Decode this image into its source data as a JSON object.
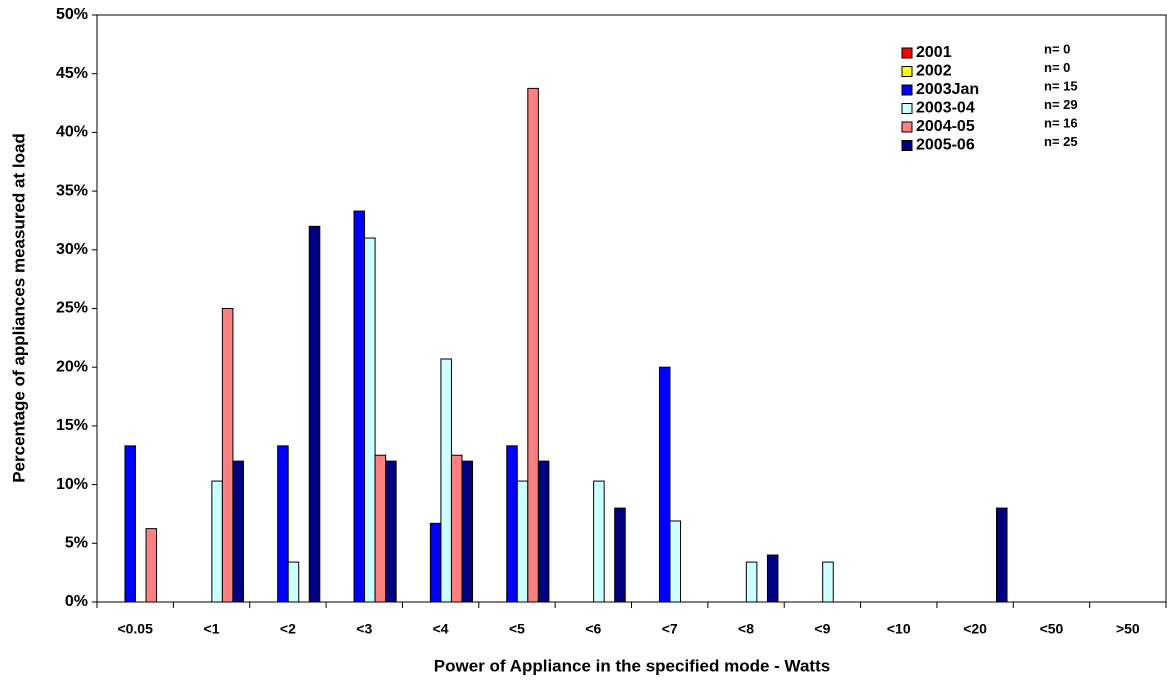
{
  "chart_data": {
    "type": "bar",
    "x_label": "Power of Appliance in the specified mode - Watts",
    "y_label": "Percentage of appliances measured at load",
    "categories": [
      "<0.05",
      "<1",
      "<2",
      "<3",
      "<4",
      "<5",
      "<6",
      "<7",
      "<8",
      "<9",
      "<10",
      "<20",
      "<50",
      ">50"
    ],
    "series": [
      {
        "name": "2001",
        "note": "n= 0",
        "color": "#ff0000",
        "values": [
          0,
          0,
          0,
          0,
          0,
          0,
          0,
          0,
          0,
          0,
          0,
          0,
          0,
          0
        ]
      },
      {
        "name": "2002",
        "note": "n= 0",
        "color": "#ffff00",
        "values": [
          0,
          0,
          0,
          0,
          0,
          0,
          0,
          0,
          0,
          0,
          0,
          0,
          0,
          0
        ]
      },
      {
        "name": "2003Jan",
        "note": "n= 15",
        "color": "#0000ff",
        "values": [
          13.3,
          0,
          13.3,
          33.3,
          6.7,
          13.3,
          0,
          20,
          0,
          0,
          0,
          0,
          0,
          0
        ]
      },
      {
        "name": "2003-04",
        "note": "n= 29",
        "color": "#ccffff",
        "values": [
          0,
          10.3,
          3.4,
          31.0,
          20.7,
          10.3,
          10.3,
          6.9,
          3.4,
          3.4,
          0,
          0,
          0,
          0
        ]
      },
      {
        "name": "2004-05",
        "note": "n= 16",
        "color": "#ff8080",
        "values": [
          6.25,
          25,
          0,
          12.5,
          12.5,
          43.75,
          0,
          0,
          0,
          0,
          0,
          0,
          0,
          0
        ]
      },
      {
        "name": "2005-06",
        "note": "n= 25",
        "color": "#000080",
        "values": [
          0,
          12,
          32,
          12,
          12,
          12,
          8,
          0,
          4,
          0,
          0,
          8,
          0,
          0
        ]
      }
    ],
    "ylim": [
      0,
      50
    ],
    "yticks": [
      {
        "value": 0,
        "label": "0%"
      },
      {
        "value": 5,
        "label": "5%"
      },
      {
        "value": 10,
        "label": "10%"
      },
      {
        "value": 15,
        "label": "15%"
      },
      {
        "value": 20,
        "label": "20%"
      },
      {
        "value": 25,
        "label": "25%"
      },
      {
        "value": 30,
        "label": "30%"
      },
      {
        "value": 35,
        "label": "35%"
      },
      {
        "value": 40,
        "label": "40%"
      },
      {
        "value": 45,
        "label": "45%"
      },
      {
        "value": 50,
        "label": "50%"
      }
    ],
    "legend": "top-right"
  }
}
